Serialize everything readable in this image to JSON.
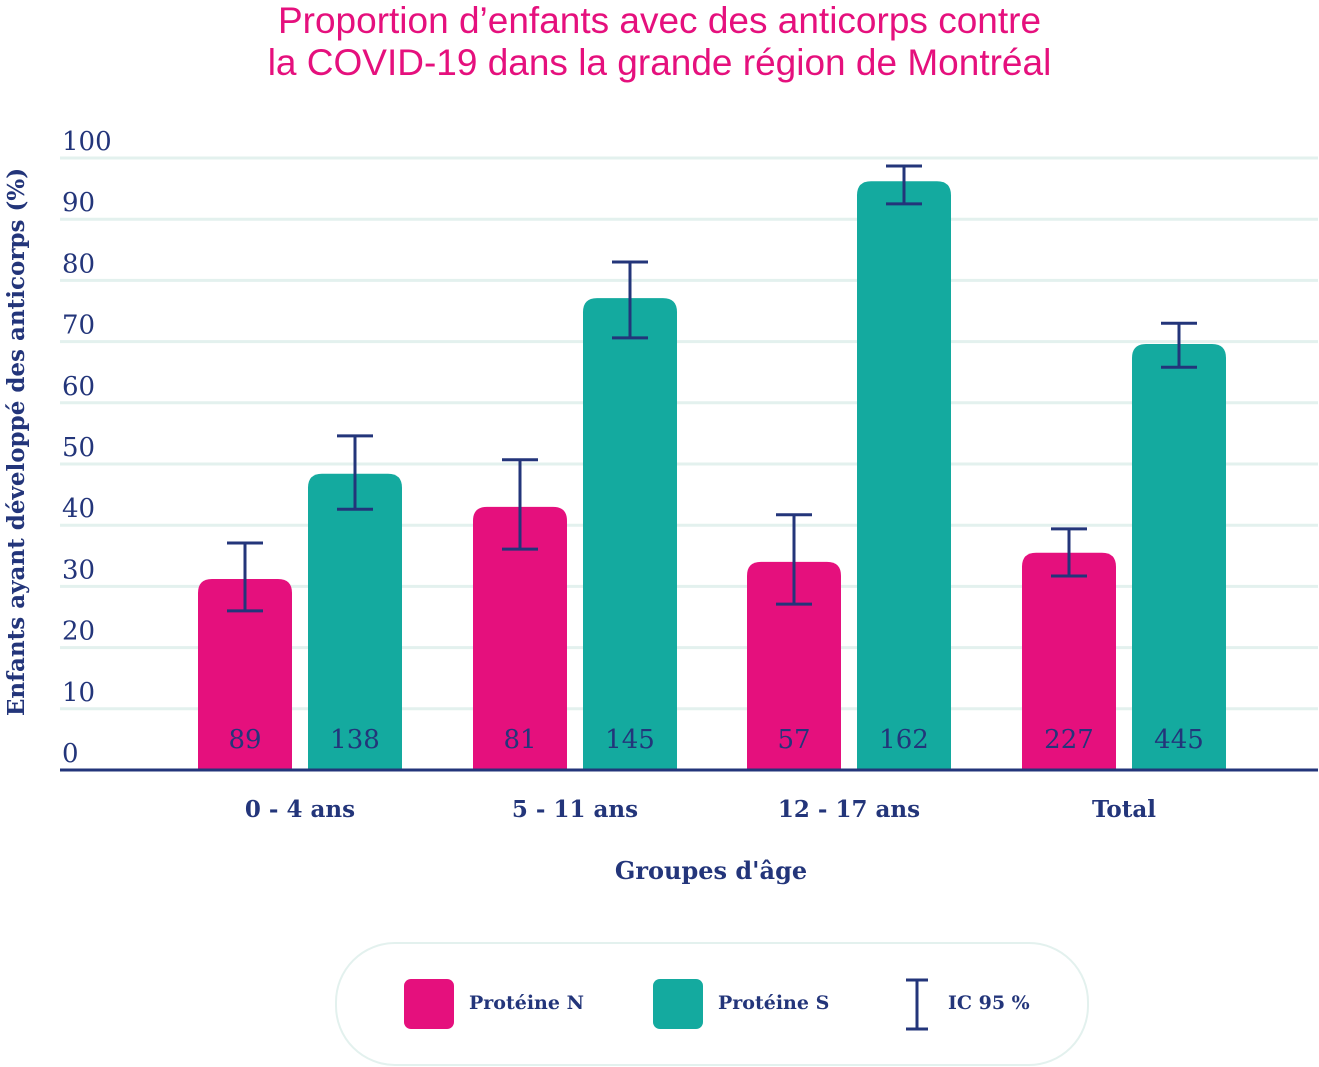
{
  "chart_data": {
    "type": "bar",
    "title_line1": "Proportion d’enfants avec des anticorps contre",
    "title_line2": "la COVID-19 dans la grande région de Montréal",
    "xlabel": "Groupes d'âge",
    "ylabel": "Enfants ayant développé des anticorps (%)",
    "ylim": [
      0,
      100
    ],
    "yticks": [
      "0",
      "10",
      "20",
      "30",
      "40",
      "50",
      "60",
      "70",
      "80",
      "90",
      "100"
    ],
    "grid": true,
    "categories": [
      "0 - 4 ans",
      "5 - 11 ans",
      "12 - 17 ans",
      "Total"
    ],
    "series": [
      {
        "name": "Protéine N",
        "color": "#e5107d",
        "values": [
          31.2,
          43.0,
          34.0,
          35.5
        ],
        "ci_low": [
          26.0,
          36.1,
          27.1,
          31.7
        ],
        "ci_high": [
          37.1,
          50.7,
          41.7,
          39.4
        ],
        "n": [
          "89",
          "81",
          "57",
          "227"
        ]
      },
      {
        "name": "Protéine S",
        "color": "#14aa9f",
        "values": [
          48.4,
          77.1,
          96.2,
          69.6
        ],
        "ci_low": [
          42.6,
          70.6,
          92.5,
          65.8
        ],
        "ci_high": [
          54.6,
          83.0,
          98.7,
          73.0
        ],
        "n": [
          "138",
          "145",
          "162",
          "445"
        ]
      }
    ],
    "legend": {
      "position": "bottom",
      "ci_label": "IC 95 %"
    }
  }
}
